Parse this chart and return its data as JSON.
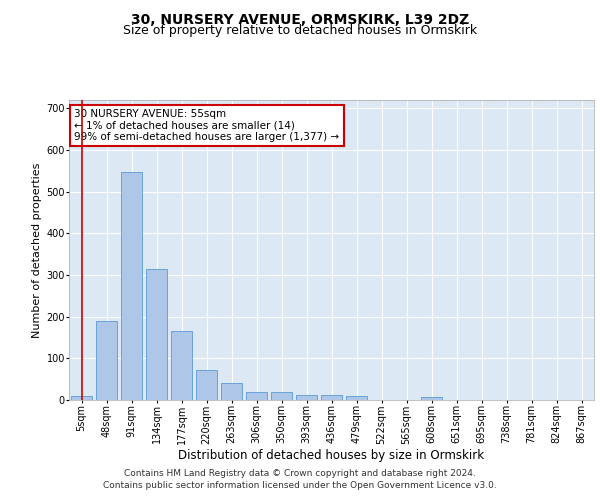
{
  "title1": "30, NURSERY AVENUE, ORMSKIRK, L39 2DZ",
  "title2": "Size of property relative to detached houses in Ormskirk",
  "xlabel": "Distribution of detached houses by size in Ormskirk",
  "ylabel": "Number of detached properties",
  "categories": [
    "5sqm",
    "48sqm",
    "91sqm",
    "134sqm",
    "177sqm",
    "220sqm",
    "263sqm",
    "306sqm",
    "350sqm",
    "393sqm",
    "436sqm",
    "479sqm",
    "522sqm",
    "565sqm",
    "608sqm",
    "651sqm",
    "695sqm",
    "738sqm",
    "781sqm",
    "824sqm",
    "867sqm"
  ],
  "values": [
    10,
    190,
    548,
    315,
    165,
    73,
    42,
    20,
    20,
    12,
    13,
    10,
    0,
    0,
    7,
    0,
    0,
    0,
    0,
    0,
    0
  ],
  "bar_color": "#aec6e8",
  "bar_edge_color": "#5b9bd5",
  "vline_x": 0,
  "vline_color": "#cc0000",
  "annotation_text": "30 NURSERY AVENUE: 55sqm\n← 1% of detached houses are smaller (14)\n99% of semi-detached houses are larger (1,377) →",
  "annotation_box_color": "#cc0000",
  "ylim": [
    0,
    720
  ],
  "yticks": [
    0,
    100,
    200,
    300,
    400,
    500,
    600,
    700
  ],
  "bg_color": "#dce9f5",
  "footer1": "Contains HM Land Registry data © Crown copyright and database right 2024.",
  "footer2": "Contains public sector information licensed under the Open Government Licence v3.0.",
  "title1_fontsize": 10,
  "title2_fontsize": 9,
  "xlabel_fontsize": 8.5,
  "ylabel_fontsize": 8,
  "tick_fontsize": 7,
  "annotation_fontsize": 7.5,
  "footer_fontsize": 6.5
}
